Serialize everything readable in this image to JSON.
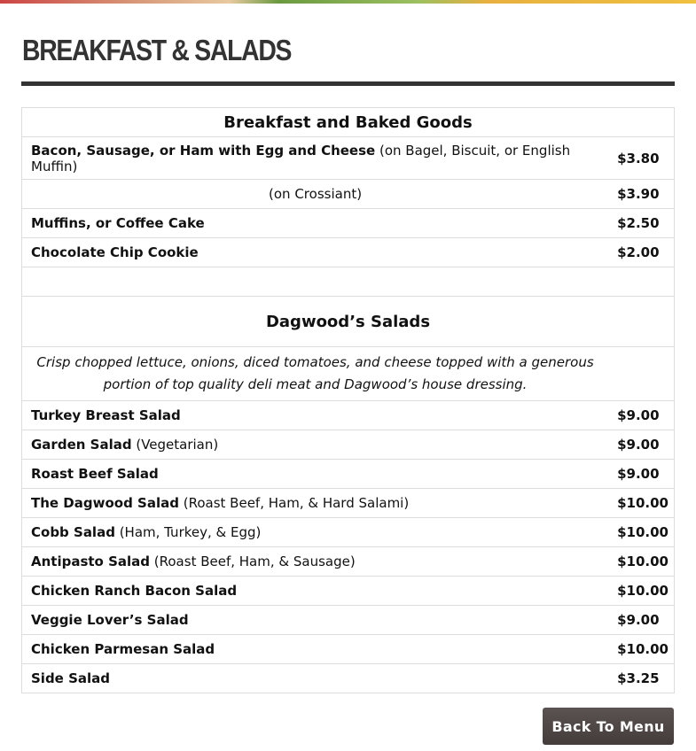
{
  "page_title": "BREAKFAST & SALADS",
  "breakfast": {
    "heading": "Breakfast and Baked Goods",
    "items": [
      {
        "name": "Bacon, Sausage, or Ham with Egg and Cheese",
        "note": " (on Bagel, Biscuit, or English Muffin)",
        "price": "$3.80"
      },
      {
        "name": "",
        "note": "(on Crossiant)",
        "price": "$3.90"
      },
      {
        "name": "Muffins, or Coffee Cake",
        "note": "",
        "price": "$2.50"
      },
      {
        "name": "Chocolate Chip Cookie",
        "note": "",
        "price": "$2.00"
      }
    ]
  },
  "salads": {
    "heading": "Dagwood’s Salads",
    "description": "Crisp chopped lettuce, onions, diced tomatoes, and cheese topped with a generous portion of top quality deli meat and Dagwood’s house dressing.",
    "items": [
      {
        "name": "Turkey Breast Salad",
        "note": "",
        "price": "$9.00"
      },
      {
        "name": "Garden Salad",
        "note": " (Vegetarian)",
        "price": "$9.00"
      },
      {
        "name": "Roast Beef Salad",
        "note": "",
        "price": "$9.00"
      },
      {
        "name": "The Dagwood Salad",
        "note": " (Roast Beef, Ham, & Hard Salami)",
        "price": "$10.00"
      },
      {
        "name": "Cobb Salad",
        "note": " (Ham, Turkey, & Egg)",
        "price": "$10.00"
      },
      {
        "name": "Antipasto Salad",
        "note": " (Roast Beef, Ham, & Sausage)",
        "price": "$10.00"
      },
      {
        "name": "Chicken Ranch Bacon Salad",
        "note": "",
        "price": "$10.00"
      },
      {
        "name": "Veggie Lover’s Salad",
        "note": "",
        "price": "$9.00"
      },
      {
        "name": "Chicken Parmesan Salad",
        "note": "",
        "price": "$10.00"
      },
      {
        "name": "Side Salad",
        "note": "",
        "price": "$3.25"
      }
    ]
  },
  "back_button": "Back To Menu"
}
